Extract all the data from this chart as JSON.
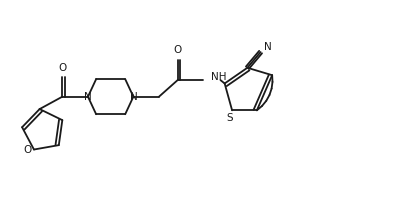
{
  "bg_color": "#ffffff",
  "line_color": "#1a1a1a",
  "figsize": [
    4.13,
    2.15
  ],
  "dpi": 100,
  "xlim": [
    0,
    10
  ],
  "ylim": [
    0,
    5.2
  ]
}
